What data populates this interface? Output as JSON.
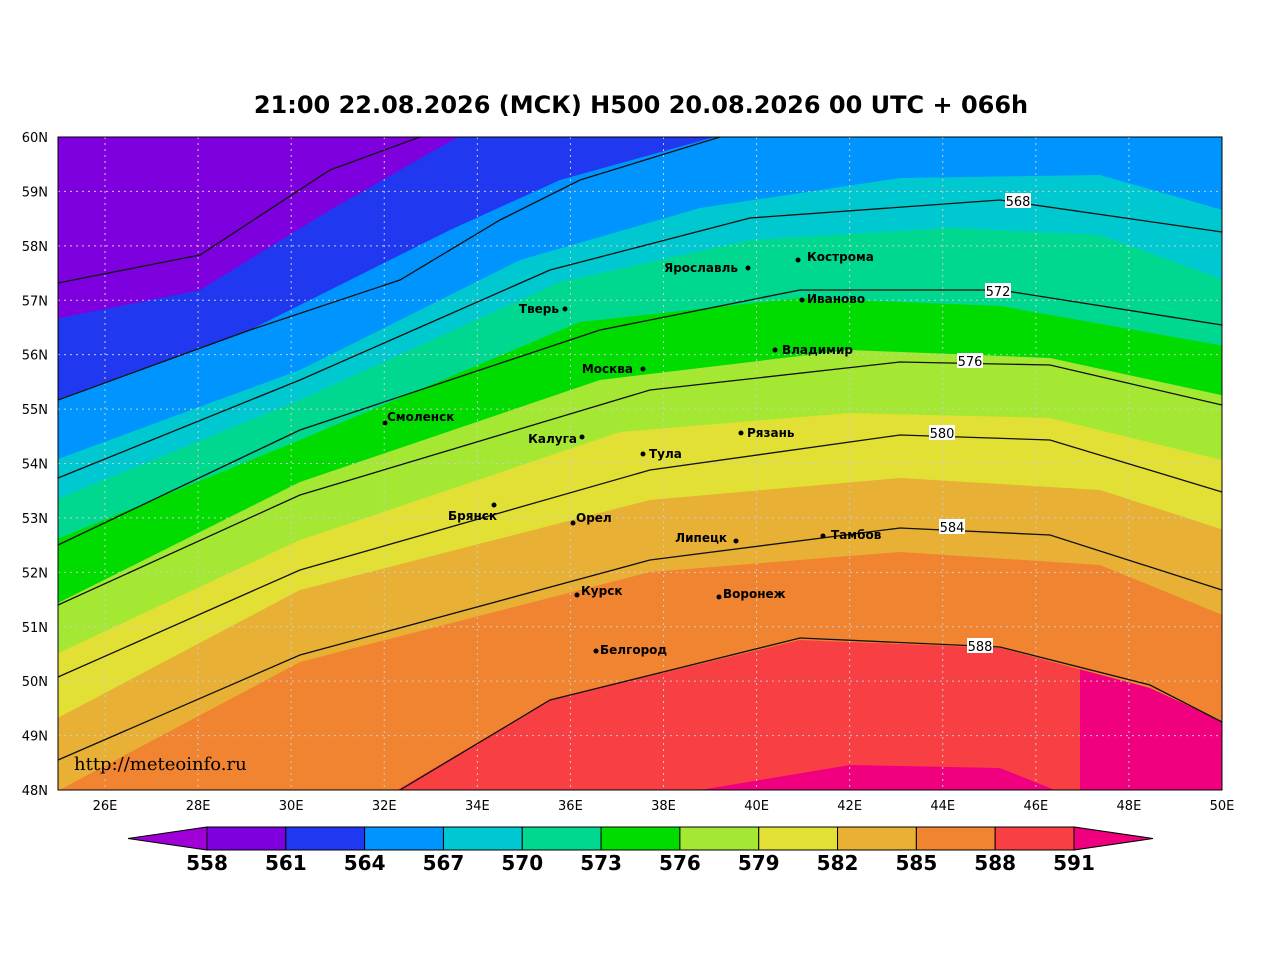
{
  "title": "21:00 22.08.2026 (МСК) H500  20.08.2026 00 UTC + 066h",
  "credit": "http://meteoinfo.ru",
  "lon_ticks": [
    "26E",
    "28E",
    "30E",
    "32E",
    "34E",
    "36E",
    "38E",
    "40E",
    "42E",
    "44E",
    "46E",
    "48E",
    "50E"
  ],
  "lat_ticks": [
    "60N",
    "59N",
    "58N",
    "57N",
    "56N",
    "55N",
    "54N",
    "53N",
    "52N",
    "51N",
    "50N",
    "49N",
    "48N"
  ],
  "cities": [
    "Кострома",
    "Ярославль",
    "Иваново",
    "Тверь",
    "Владимир",
    "Москва",
    "Смоленск",
    "Калуга",
    "Рязань",
    "Тула",
    "Брянск",
    "Орел",
    "Липецк",
    "Тамбов",
    "Курск",
    "Воронеж",
    "Белгород"
  ],
  "contour_labels": [
    "568",
    "572",
    "576",
    "580",
    "584",
    "588"
  ],
  "colorbar": {
    "levels": [
      558,
      561,
      564,
      567,
      570,
      573,
      576,
      579,
      582,
      585,
      588,
      591
    ],
    "colors": [
      "#a000d8",
      "#7f00df",
      "#2038f0",
      "#0094ff",
      "#00c8d0",
      "#00d890",
      "#00dc00",
      "#a4e834",
      "#e2e034",
      "#e8b034",
      "#f08430",
      "#f84044",
      "#f0007f"
    ]
  }
}
